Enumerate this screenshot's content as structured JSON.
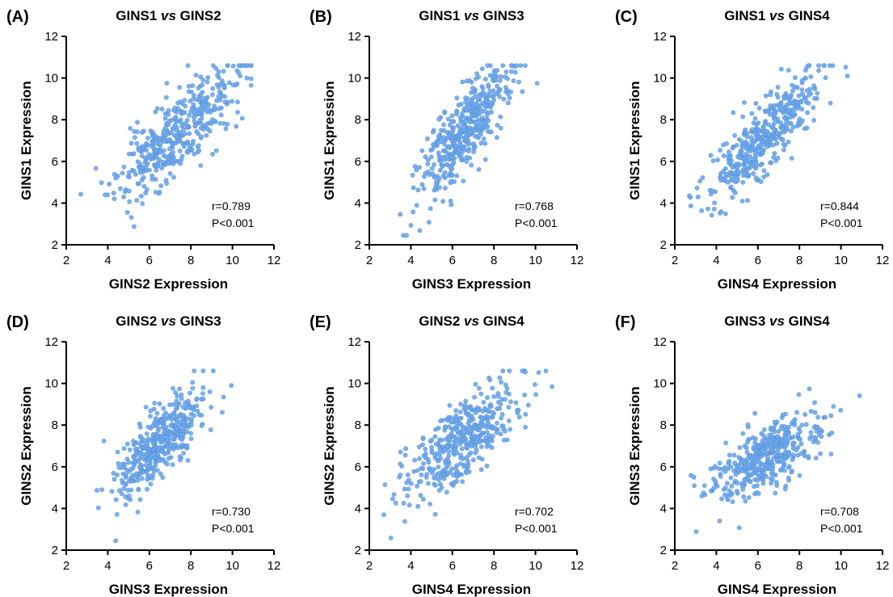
{
  "chart_data": [
    {
      "type": "scatter",
      "panel_letter": "(A)",
      "title": "GINS1 vs GINS2",
      "title_parts": {
        "left": "GINS1",
        "mid": "vs",
        "right": "GINS2"
      },
      "xlabel": "GINS2 Expression",
      "ylabel": "GINS1 Expression",
      "xlim": [
        2,
        12
      ],
      "ylim": [
        2,
        12
      ],
      "xticks": [
        2,
        4,
        6,
        8,
        10,
        12
      ],
      "yticks": [
        2,
        4,
        6,
        8,
        10,
        12
      ],
      "stats": {
        "r": "r=0.789",
        "p": "P<0.001"
      },
      "color": "#6fa8ea",
      "sim": {
        "n": 420,
        "x_mean": 7.3,
        "x_sd": 1.45,
        "y_mean": 7.3,
        "y_sd": 1.55,
        "r": 0.789,
        "seed": 11
      }
    },
    {
      "type": "scatter",
      "panel_letter": "(B)",
      "title": "GINS1 vs GINS3",
      "title_parts": {
        "left": "GINS1",
        "mid": "vs",
        "right": "GINS3"
      },
      "xlabel": "GINS3 Expression",
      "ylabel": "GINS1 Expression",
      "xlim": [
        2,
        12
      ],
      "ylim": [
        2,
        12
      ],
      "xticks": [
        2,
        4,
        6,
        8,
        10,
        12
      ],
      "yticks": [
        2,
        4,
        6,
        8,
        10,
        12
      ],
      "stats": {
        "r": "r=0.768",
        "p": "P<0.001"
      },
      "color": "#6fa8ea",
      "sim": {
        "n": 420,
        "x_mean": 6.5,
        "x_sd": 1.05,
        "y_mean": 7.3,
        "y_sd": 1.55,
        "r": 0.768,
        "seed": 23
      }
    },
    {
      "type": "scatter",
      "panel_letter": "(C)",
      "title": "GINS1 vs GINS4",
      "title_parts": {
        "left": "GINS1",
        "mid": "vs",
        "right": "GINS4"
      },
      "xlabel": "GINS4 Expression",
      "ylabel": "GINS1 Expression",
      "xlim": [
        2,
        12
      ],
      "ylim": [
        2,
        12
      ],
      "xticks": [
        2,
        4,
        6,
        8,
        10,
        12
      ],
      "yticks": [
        2,
        4,
        6,
        8,
        10,
        12
      ],
      "stats": {
        "r": "r=0.844",
        "p": "P<0.001"
      },
      "color": "#6fa8ea",
      "sim": {
        "n": 420,
        "x_mean": 6.4,
        "x_sd": 1.35,
        "y_mean": 7.3,
        "y_sd": 1.55,
        "r": 0.844,
        "seed": 37
      }
    },
    {
      "type": "scatter",
      "panel_letter": "(D)",
      "title": "GINS2 vs GINS3",
      "title_parts": {
        "left": "GINS2",
        "mid": "vs",
        "right": "GINS3"
      },
      "xlabel": "GINS3 Expression",
      "ylabel": "GINS2 Expression",
      "xlim": [
        2,
        12
      ],
      "ylim": [
        2,
        12
      ],
      "xticks": [
        2,
        4,
        6,
        8,
        10,
        12
      ],
      "yticks": [
        2,
        4,
        6,
        8,
        10,
        12
      ],
      "stats": {
        "r": "r=0.730",
        "p": "P<0.001"
      },
      "color": "#6fa8ea",
      "sim": {
        "n": 420,
        "x_mean": 6.5,
        "x_sd": 1.05,
        "y_mean": 7.2,
        "y_sd": 1.3,
        "r": 0.73,
        "seed": 41
      }
    },
    {
      "type": "scatter",
      "panel_letter": "(E)",
      "title": "GINS2 vs GINS4",
      "title_parts": {
        "left": "GINS2",
        "mid": "vs",
        "right": "GINS4"
      },
      "xlabel": "GINS4 Expression",
      "ylabel": "GINS2 Expression",
      "xlim": [
        2,
        12
      ],
      "ylim": [
        2,
        12
      ],
      "xticks": [
        2,
        4,
        6,
        8,
        10,
        12
      ],
      "yticks": [
        2,
        4,
        6,
        8,
        10,
        12
      ],
      "stats": {
        "r": "r=0.702",
        "p": "P<0.001"
      },
      "color": "#6fa8ea",
      "sim": {
        "n": 420,
        "x_mean": 6.4,
        "x_sd": 1.35,
        "y_mean": 7.2,
        "y_sd": 1.3,
        "r": 0.702,
        "seed": 53
      }
    },
    {
      "type": "scatter",
      "panel_letter": "(F)",
      "title": "GINS3 vs GINS4",
      "title_parts": {
        "left": "GINS3",
        "mid": "vs",
        "right": "GINS4"
      },
      "xlabel": "GINS4 Expression",
      "ylabel": "GINS3 Expression",
      "xlim": [
        2,
        12
      ],
      "ylim": [
        2,
        12
      ],
      "xticks": [
        2,
        4,
        6,
        8,
        10,
        12
      ],
      "yticks": [
        2,
        4,
        6,
        8,
        10,
        12
      ],
      "stats": {
        "r": "r=0.708",
        "p": "P<0.001"
      },
      "color": "#6fa8ea",
      "sim": {
        "n": 420,
        "x_mean": 6.4,
        "x_sd": 1.35,
        "y_mean": 6.5,
        "y_sd": 1.05,
        "r": 0.708,
        "seed": 67
      }
    }
  ]
}
